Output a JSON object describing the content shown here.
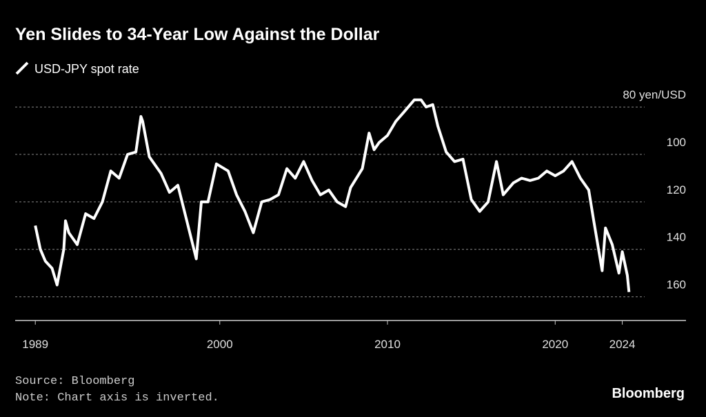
{
  "chart_data": {
    "type": "line",
    "title": "Yen Slides to 34-Year Low Against the Dollar",
    "source": "Source: Bloomberg",
    "note": "Note: Chart axis is inverted.",
    "brand": "Bloomberg",
    "inverted": true,
    "grid": true,
    "x": [
      1989.0,
      1989.3,
      1989.6,
      1990.0,
      1990.3,
      1990.7,
      1990.8,
      1991.0,
      1991.5,
      1992.0,
      1992.5,
      1993.0,
      1993.5,
      1994.0,
      1994.5,
      1995.0,
      1995.3,
      1995.4,
      1995.8,
      1996.5,
      1997.0,
      1997.5,
      1998.0,
      1998.6,
      1998.9,
      1999.3,
      1999.8,
      2000.5,
      2001.0,
      2001.5,
      2002.0,
      2002.5,
      2003.0,
      2003.5,
      2004.0,
      2004.5,
      2005.0,
      2005.5,
      2006.0,
      2006.5,
      2007.0,
      2007.5,
      2007.8,
      2008.5,
      2008.9,
      2009.2,
      2009.5,
      2010.0,
      2010.5,
      2011.0,
      2011.6,
      2012.0,
      2012.3,
      2012.7,
      2013.0,
      2013.5,
      2014.0,
      2014.5,
      2015.0,
      2015.5,
      2016.0,
      2016.5,
      2016.9,
      2017.5,
      2018.0,
      2018.5,
      2019.0,
      2019.5,
      2020.0,
      2020.5,
      2021.0,
      2021.5,
      2022.0,
      2022.3,
      2022.8,
      2023.0,
      2023.4,
      2023.8,
      2024.0,
      2024.3,
      2024.4
    ],
    "series": [
      {
        "name": "USD-JPY spot rate",
        "color": "#ffffff",
        "values": [
          130,
          140,
          145,
          148,
          155,
          140,
          128,
          133,
          138,
          125,
          127,
          120,
          107,
          110,
          100,
          99,
          84,
          86,
          101,
          108,
          116,
          113,
          127,
          144,
          120,
          120,
          104,
          107,
          117,
          124,
          133,
          120,
          119,
          117,
          106,
          110,
          103,
          111,
          117,
          115,
          120,
          122,
          114,
          106,
          91,
          98,
          95,
          92,
          86,
          82,
          77,
          77,
          80,
          79,
          88,
          99,
          103,
          102,
          119,
          124,
          120,
          103,
          117,
          112,
          110,
          111,
          110,
          107,
          109,
          107,
          103,
          110,
          115,
          128,
          149,
          131,
          138,
          150,
          141,
          151,
          158
        ]
      }
    ],
    "xlim": [
      1987.8,
      2027.8
    ],
    "xticks": [
      1989,
      2000,
      2010,
      2020,
      2024
    ],
    "ylim": [
      75,
      170
    ],
    "yticks": [
      {
        "value": 80,
        "label": "80 yen/USD"
      },
      100,
      120,
      140,
      160
    ]
  }
}
